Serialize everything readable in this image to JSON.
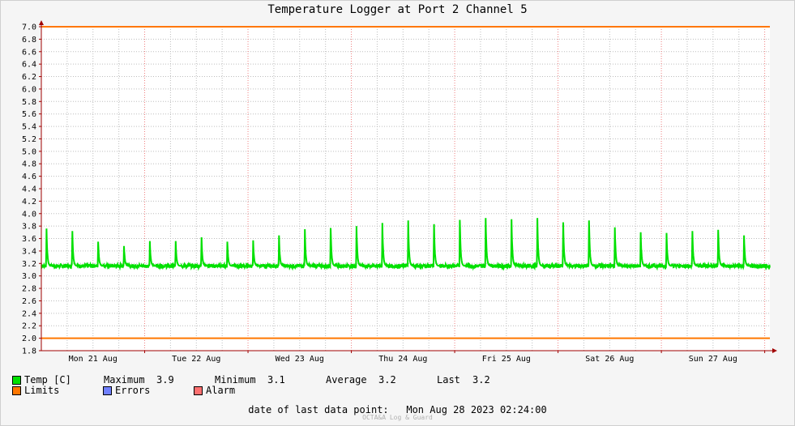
{
  "chart_data": {
    "type": "line",
    "title": "Temperature Logger at Port 2 Channel 5",
    "ylim": [
      1.8,
      7.0
    ],
    "yticks": [
      "1.8",
      "2.0",
      "2.2",
      "2.4",
      "2.6",
      "2.8",
      "3.0",
      "3.2",
      "3.4",
      "3.6",
      "3.8",
      "4.0",
      "4.2",
      "4.4",
      "4.6",
      "4.8",
      "5.0",
      "5.2",
      "5.4",
      "5.6",
      "5.8",
      "6.0",
      "6.2",
      "6.4",
      "6.6",
      "6.8",
      "7.0"
    ],
    "xlim": [
      0,
      7.05
    ],
    "xticks": [
      {
        "label": "Mon 21 Aug",
        "x": 0.5
      },
      {
        "label": "Tue 22 Aug",
        "x": 1.5
      },
      {
        "label": "Wed 23 Aug",
        "x": 2.5
      },
      {
        "label": "Thu 24 Aug",
        "x": 3.5
      },
      {
        "label": "Fri 25 Aug",
        "x": 4.5
      },
      {
        "label": "Sat 26 Aug",
        "x": 5.5
      },
      {
        "label": "Sun 27 Aug",
        "x": 6.5
      }
    ],
    "day_boundaries": [
      1,
      2,
      3,
      4,
      5,
      6,
      7
    ],
    "grid": true,
    "limits": [
      2.0,
      7.0
    ],
    "series": [
      {
        "name": "Temp [C]",
        "color": "#00e000",
        "baseline": 3.16,
        "peaks": [
          {
            "x": 0.05,
            "y": 3.76
          },
          {
            "x": 0.3,
            "y": 3.72
          },
          {
            "x": 0.55,
            "y": 3.55
          },
          {
            "x": 0.8,
            "y": 3.48
          },
          {
            "x": 1.05,
            "y": 3.56
          },
          {
            "x": 1.3,
            "y": 3.56
          },
          {
            "x": 1.55,
            "y": 3.62
          },
          {
            "x": 1.8,
            "y": 3.55
          },
          {
            "x": 2.05,
            "y": 3.57
          },
          {
            "x": 2.3,
            "y": 3.65
          },
          {
            "x": 2.55,
            "y": 3.75
          },
          {
            "x": 2.8,
            "y": 3.77
          },
          {
            "x": 3.05,
            "y": 3.8
          },
          {
            "x": 3.3,
            "y": 3.85
          },
          {
            "x": 3.55,
            "y": 3.89
          },
          {
            "x": 3.8,
            "y": 3.83
          },
          {
            "x": 4.05,
            "y": 3.9
          },
          {
            "x": 4.3,
            "y": 3.93
          },
          {
            "x": 4.55,
            "y": 3.91
          },
          {
            "x": 4.8,
            "y": 3.93
          },
          {
            "x": 5.05,
            "y": 3.86
          },
          {
            "x": 5.3,
            "y": 3.89
          },
          {
            "x": 5.55,
            "y": 3.78
          },
          {
            "x": 5.8,
            "y": 3.7
          },
          {
            "x": 6.05,
            "y": 3.69
          },
          {
            "x": 6.3,
            "y": 3.72
          },
          {
            "x": 6.55,
            "y": 3.74
          },
          {
            "x": 6.8,
            "y": 3.65
          }
        ]
      }
    ],
    "colors": {
      "temp": "#00e000",
      "limits": "#ff7700",
      "errors": "#7080ff",
      "alarm": "#ff7070",
      "grid_major": "#f08080",
      "grid_minor": "#bdbdbd",
      "axis": "#a00000"
    }
  },
  "legend": {
    "temp_label": "Temp [C]",
    "maximum_label": "Maximum",
    "maximum_value": "3.9",
    "minimum_label": "Minimum",
    "minimum_value": "3.1",
    "average_label": "Average",
    "average_value": "3.2",
    "last_label": "Last",
    "last_value": "3.2",
    "limits_label": "Limits",
    "errors_label": "Errors",
    "alarm_label": "Alarm"
  },
  "footer": {
    "label": "date of last data point:",
    "value": "Mon Aug 28 2023 02:24:00",
    "credit": "OCTA&A Log & Guard"
  }
}
